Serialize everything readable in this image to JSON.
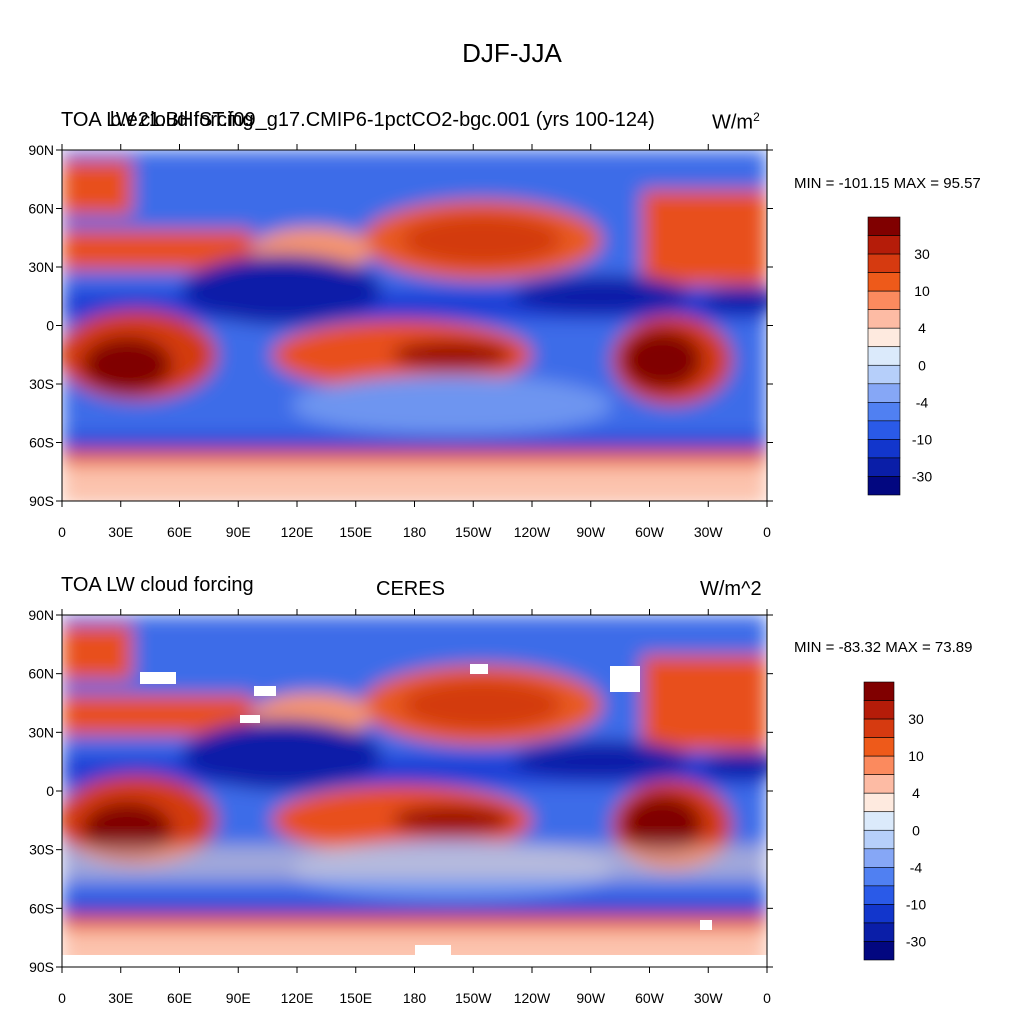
{
  "figure": {
    "title": "DJF-JJA"
  },
  "panels": [
    {
      "left_title": "TOA LW cloud forcing",
      "center_title": "b.e21.BHIST.f09_g17.CMIP6-1pctCO2-bgc.001 (yrs 100-124)",
      "units": "W/m",
      "units_exponent": "2",
      "min_max": "MIN = -101.15 MAX =  95.57"
    },
    {
      "left_title": "TOA LW cloud forcing",
      "center_title": "CERES",
      "units": "W/m^2",
      "units_exponent": "",
      "min_max": "MIN = -83.32 MAX =  73.89"
    }
  ],
  "axes": {
    "lat_ticks": [
      "90N",
      "60N",
      "30N",
      "0",
      "30S",
      "60S",
      "90S"
    ],
    "lon_ticks": [
      "0",
      "30E",
      "60E",
      "90E",
      "120E",
      "150E",
      "180",
      "150W",
      "120W",
      "90W",
      "60W",
      "30W",
      "0"
    ]
  },
  "colorbar": {
    "colors": [
      "#800000",
      "#b51c09",
      "#d63a10",
      "#ee5a1a",
      "#fb8a5e",
      "#fdbba4",
      "#feeadf",
      "#dbeafb",
      "#b6cffa",
      "#86a7f6",
      "#5080f2",
      "#2a5ae8",
      "#1236cc",
      "#0a1ea8",
      "#020780"
    ],
    "labels": [
      "30",
      "10",
      "4",
      "0",
      "-4",
      "-10",
      "-30"
    ]
  }
}
